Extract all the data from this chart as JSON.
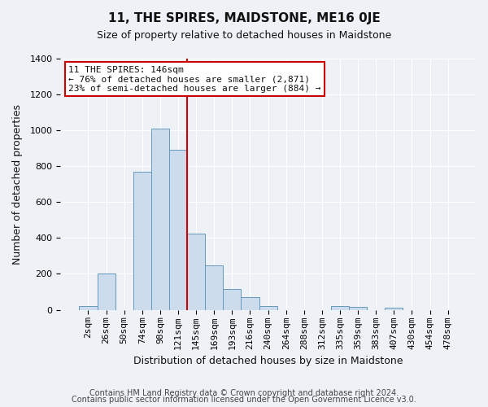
{
  "title": "11, THE SPIRES, MAIDSTONE, ME16 0JE",
  "subtitle": "Size of property relative to detached houses in Maidstone",
  "xlabel": "Distribution of detached houses by size in Maidstone",
  "ylabel": "Number of detached properties",
  "footer_line1": "Contains HM Land Registry data © Crown copyright and database right 2024.",
  "footer_line2": "Contains public sector information licensed under the Open Government Licence v3.0.",
  "bin_labels": [
    "2sqm",
    "26sqm",
    "50sqm",
    "74sqm",
    "98sqm",
    "121sqm",
    "145sqm",
    "169sqm",
    "193sqm",
    "216sqm",
    "240sqm",
    "264sqm",
    "288sqm",
    "312sqm",
    "335sqm",
    "359sqm",
    "383sqm",
    "407sqm",
    "430sqm",
    "454sqm",
    "478sqm"
  ],
  "bar_heights": [
    20,
    200,
    0,
    770,
    1010,
    890,
    425,
    245,
    115,
    70,
    20,
    0,
    0,
    0,
    20,
    15,
    0,
    10,
    0,
    0,
    0
  ],
  "bar_color": "#ccdcec",
  "bar_edge_color": "#6699bb",
  "vline_color": "#cc0000",
  "vline_x_idx": 6,
  "ylim": [
    0,
    1400
  ],
  "yticks": [
    0,
    200,
    400,
    600,
    800,
    1000,
    1200,
    1400
  ],
  "annotation_title": "11 THE SPIRES: 146sqm",
  "annotation_line1": "← 76% of detached houses are smaller (2,871)",
  "annotation_line2": "23% of semi-detached houses are larger (884) →",
  "annotation_box_facecolor": "#ffffff",
  "annotation_box_edgecolor": "#cc0000",
  "bg_color": "#eef2f7",
  "grid_color": "#ffffff",
  "text_color": "#111111",
  "title_fontsize": 11,
  "subtitle_fontsize": 9,
  "xlabel_fontsize": 9,
  "ylabel_fontsize": 9,
  "tick_fontsize": 8,
  "annotation_fontsize": 8,
  "footer_fontsize": 7
}
